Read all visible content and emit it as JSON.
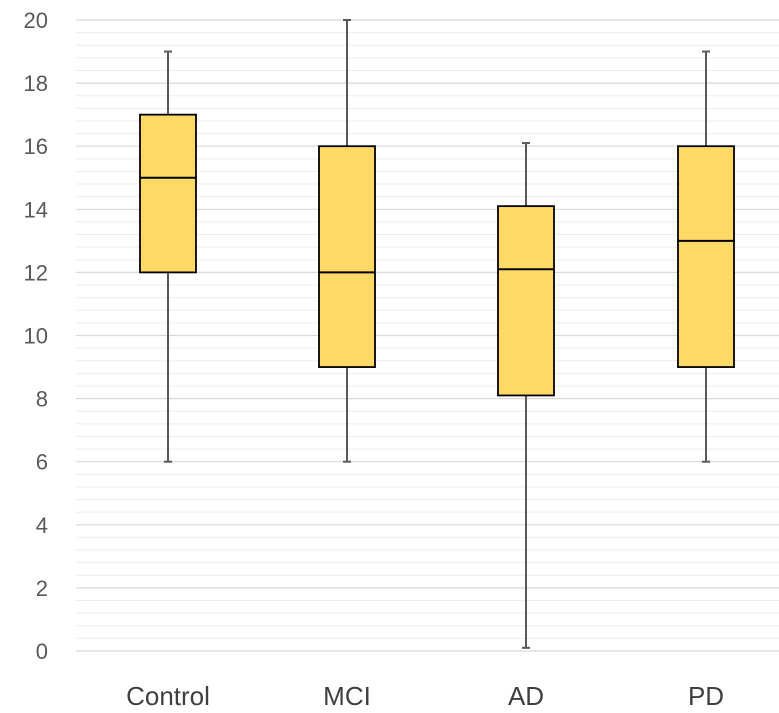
{
  "chart_data": {
    "type": "boxplot",
    "title": "",
    "xlabel": "",
    "ylabel": "",
    "ylim": [
      0,
      20
    ],
    "yticks": [
      0,
      2,
      4,
      6,
      8,
      10,
      12,
      14,
      16,
      18,
      20
    ],
    "grid": true,
    "legend": "none",
    "categories": [
      "Control",
      "MCI",
      "AD",
      "PD"
    ],
    "boxes": [
      {
        "category": "Control",
        "min": 6,
        "q1": 12,
        "median": 15,
        "q3": 17,
        "max": 19
      },
      {
        "category": "MCI",
        "min": 6,
        "q1": 9,
        "median": 12,
        "q3": 16,
        "max": 20
      },
      {
        "category": "AD",
        "min": 0.1,
        "q1": 8.1,
        "median": 12.1,
        "q3": 14.1,
        "max": 16.1
      },
      {
        "category": "PD",
        "min": 6,
        "q1": 9,
        "median": 13,
        "q3": 16,
        "max": 19
      }
    ],
    "colors": {
      "box_fill": "#FFD966",
      "box_stroke": "#000000",
      "whisker": "#595959",
      "major_grid": "#D9D9D9",
      "minor_grid": "#EDEDED"
    }
  }
}
